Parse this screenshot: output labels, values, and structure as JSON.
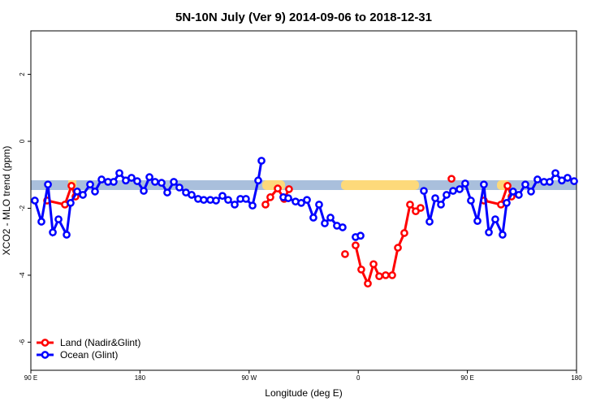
{
  "chart_data": {
    "type": "line",
    "title": "5N-10N July (Ver 9)   2014-09-06 to 2018-12-31",
    "x_label": "Longitude (deg E)",
    "y_label": "XCO2 - MLO trend (ppm)",
    "xlim": [
      90,
      540
    ],
    "ylim": [
      -6.84,
      3.3
    ],
    "xticks": [
      {
        "value": 90,
        "label": "90 E"
      },
      180,
      {
        "value": 270,
        "label": "90 W"
      },
      {
        "value": 360,
        "label": "0"
      },
      {
        "value": 450,
        "label": "90 E"
      },
      {
        "value": 540,
        "label": "180"
      }
    ],
    "yticks": [
      -6,
      -4,
      -2,
      0,
      2
    ],
    "legend": "bottom-left",
    "series": [
      {
        "name": "Land (Nadir&Glint)",
        "color": "#ff0000",
        "x": [
          103.4,
          118.1,
          123.5,
          126.8,
          null,
          283.5,
          287.5,
          293.6,
          298.9,
          302.9,
          null,
          349.1,
          null,
          357.8,
          362.5,
          367.9,
          372.6,
          377.3,
          382.6,
          388.0,
          392.7,
          398.0,
          402.7,
          407.4,
          411.4,
          null,
          436.9,
          null,
          463.6,
          477.7,
          483.1,
          486.4
        ],
        "values": [
          -1.77,
          -1.89,
          -1.33,
          -1.65,
          null,
          -1.89,
          -1.67,
          -1.41,
          -1.72,
          -1.43,
          null,
          -3.37,
          null,
          -3.11,
          -3.83,
          -4.25,
          -3.67,
          -4.03,
          -4.0,
          -4.0,
          -3.18,
          -2.74,
          -1.89,
          -2.09,
          -1.99,
          null,
          -1.12,
          null,
          -1.77,
          -1.89,
          -1.33,
          -1.65
        ]
      },
      {
        "name": "Ocean (Glint)",
        "color": "#0000ff",
        "x": [
          93.3,
          98.7,
          104.1,
          108.1,
          112.8,
          119.5,
          122.8,
          128.2,
          132.9,
          138.9,
          142.9,
          148.3,
          153.6,
          158.3,
          163.0,
          168.3,
          173.0,
          177.7,
          183.1,
          187.8,
          192.4,
          197.8,
          202.5,
          207.9,
          212.5,
          217.9,
          222.6,
          227.9,
          232.6,
          238.0,
          242.7,
          248.0,
          252.7,
          258.1,
          262.8,
          267.4,
          272.8,
          277.5,
          280.2,
          null,
          298.2,
          302.3,
          308.3,
          313.0,
          317.7,
          323.0,
          327.7,
          332.4,
          337.1,
          342.4,
          347.1,
          null,
          357.8,
          361.9,
          null,
          414.1,
          418.8,
          423.5,
          428.2,
          432.8,
          438.2,
          443.6,
          448.2,
          452.9,
          458.3,
          463.6,
          467.7,
          473.0,
          479.0,
          482.4,
          487.7,
          492.4,
          497.8,
          502.5,
          507.8,
          513.2,
          517.9,
          522.6,
          527.9,
          532.6,
          538.0
        ],
        "values": [
          -1.77,
          -2.4,
          -1.29,
          -2.72,
          -2.33,
          -2.79,
          -1.84,
          -1.5,
          -1.6,
          -1.29,
          -1.5,
          -1.14,
          -1.21,
          -1.21,
          -0.95,
          -1.17,
          -1.09,
          -1.19,
          -1.48,
          -1.07,
          -1.21,
          -1.24,
          -1.53,
          -1.21,
          -1.38,
          -1.53,
          -1.6,
          -1.72,
          -1.75,
          -1.75,
          -1.77,
          -1.63,
          -1.75,
          -1.89,
          -1.72,
          -1.72,
          -1.92,
          -1.17,
          -0.58,
          null,
          -1.67,
          -1.7,
          -1.8,
          -1.84,
          -1.75,
          -2.28,
          -1.89,
          -2.45,
          -2.28,
          -2.52,
          -2.57,
          null,
          -2.86,
          -2.82,
          null,
          -1.48,
          -2.4,
          -1.7,
          -1.89,
          -1.6,
          -1.48,
          -1.43,
          -1.26,
          -1.77,
          -2.38,
          -1.29,
          -2.72,
          -2.33,
          -2.79,
          -1.84,
          -1.5,
          -1.6,
          -1.29,
          -1.5,
          -1.14,
          -1.21,
          -1.21,
          -0.95,
          -1.17,
          -1.09,
          -1.19
        ]
      }
    ]
  }
}
